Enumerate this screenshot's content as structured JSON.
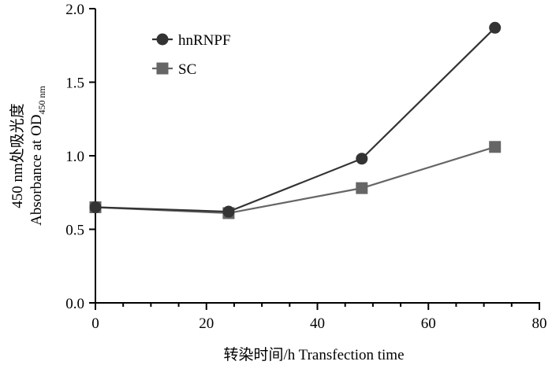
{
  "chart_data": {
    "type": "line",
    "title": "",
    "xlabel": "转染时间/h Transfection time",
    "ylabel_line1": "450 nm处吸光度",
    "ylabel_line2_prefix": "Absorbance at OD",
    "ylabel_line2_subscript": "450 nm",
    "xlim": [
      0,
      80
    ],
    "ylim": [
      0,
      2.0
    ],
    "x_ticks": [
      0,
      20,
      40,
      60,
      80
    ],
    "y_ticks": [
      0.0,
      0.5,
      1.0,
      1.5,
      2.0
    ],
    "x_tick_labels": [
      "0",
      "20",
      "40",
      "60",
      "80"
    ],
    "y_tick_labels": [
      "0.0",
      "0.5",
      "1.0",
      "1.5",
      "2.0"
    ],
    "grid": false,
    "legend_position": "top-left",
    "series": [
      {
        "name": "hnRNPF",
        "marker": "circle",
        "color": "#333333",
        "x": [
          0,
          24,
          48,
          72
        ],
        "y": [
          0.65,
          0.62,
          0.98,
          1.87
        ]
      },
      {
        "name": "SC",
        "marker": "square",
        "color": "#666666",
        "x": [
          0,
          24,
          48,
          72
        ],
        "y": [
          0.65,
          0.61,
          0.78,
          1.06
        ]
      }
    ]
  }
}
